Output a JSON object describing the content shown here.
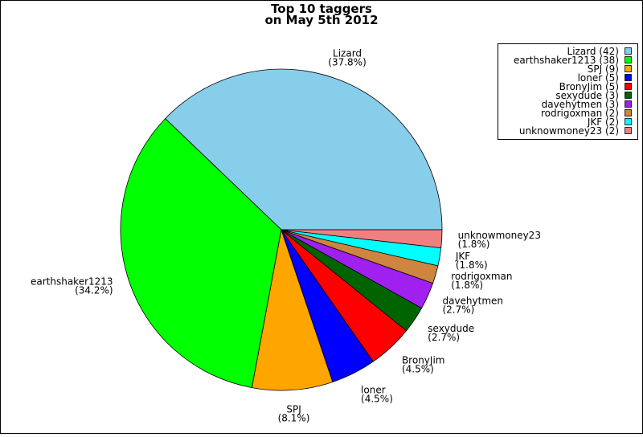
{
  "chart_data": {
    "type": "pie",
    "title": [
      "Top 10 taggers",
      "on May 5th 2012"
    ],
    "categories": [
      "Lizard",
      "earthshaker1213",
      "SPJ",
      "loner",
      "BronyJim",
      "sexydude",
      "davehytmen",
      "rodrigoxman",
      "JKF",
      "unknowmoney23"
    ],
    "values": [
      42,
      38,
      9,
      5,
      5,
      3,
      3,
      2,
      2,
      2
    ],
    "value_labels": [
      "(37.8%)",
      "(34.2%)",
      "(8.1%)",
      "(4.5%)",
      "(4.5%)",
      "(2.7%)",
      "(2.7%)",
      "(1.8%)",
      "(1.8%)",
      "(1.8%)"
    ],
    "legend_labels": [
      "Lizard (42)",
      "earthshaker1213 (38)",
      "SPJ (9)",
      "loner (5)",
      "BronyJim (5)",
      "sexydude (3)",
      "davehytmen (3)",
      "rodrigoxman (2)",
      "JKF (2)",
      "unknowmoney23 (2)"
    ],
    "colors": [
      "#87ceeb",
      "#00ff00",
      "#ffa500",
      "#0000ff",
      "#ff0000",
      "#006400",
      "#a020f0",
      "#cd853f",
      "#00ffff",
      "#f08080"
    ],
    "legend": "upper right"
  }
}
